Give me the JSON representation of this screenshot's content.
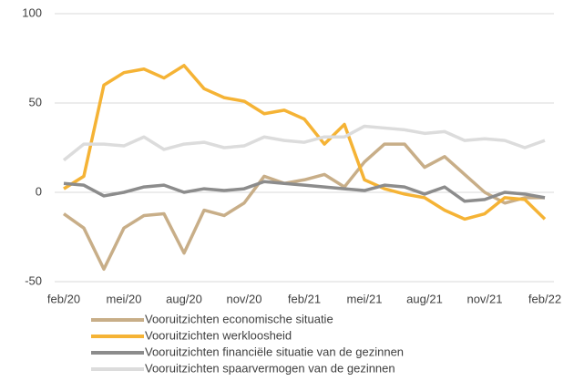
{
  "chart_data": {
    "type": "line",
    "categories": [
      "feb/20",
      null,
      null,
      "mei/20",
      null,
      null,
      "aug/20",
      null,
      null,
      "nov/20",
      null,
      null,
      "feb/21",
      null,
      null,
      "mei/21",
      null,
      null,
      "aug/21",
      null,
      null,
      "nov/21",
      null,
      null,
      "feb/22"
    ],
    "series": [
      {
        "name": "Vooruitzichten economische situatie",
        "color": "#c8ae88",
        "values": [
          -12,
          -20,
          -43,
          -20,
          -13,
          -12,
          -34,
          -10,
          -13,
          -6,
          9,
          5,
          7,
          10,
          3,
          17,
          27,
          27,
          14,
          20,
          10,
          0,
          -6,
          -3,
          -3
        ]
      },
      {
        "name": "Vooruitzichten werkloosheid",
        "color": "#f5b335",
        "values": [
          2,
          9,
          60,
          67,
          69,
          64,
          71,
          58,
          53,
          51,
          44,
          46,
          41,
          27,
          38,
          7,
          2,
          -1,
          -3,
          -10,
          -15,
          -12,
          -3,
          -4,
          -15
        ]
      },
      {
        "name": "Vooruitzichten financiële situatie van de gezinnen",
        "color": "#8c8c8c",
        "values": [
          5,
          4,
          -2,
          0,
          3,
          4,
          0,
          2,
          1,
          2,
          6,
          5,
          4,
          3,
          2,
          1,
          4,
          3,
          -1,
          3,
          -5,
          -4,
          0,
          -1,
          -3
        ]
      },
      {
        "name": "Vooruitzichten spaarvermogen van de gezinnen",
        "color": "#dcdcdc",
        "values": [
          18,
          27,
          27,
          26,
          31,
          24,
          27,
          28,
          25,
          26,
          31,
          29,
          28,
          31,
          31,
          37,
          36,
          35,
          33,
          34,
          29,
          30,
          29,
          25,
          29
        ]
      }
    ],
    "ylim": [
      -50,
      100
    ],
    "yticks": [
      100,
      50,
      0,
      -50
    ],
    "grid": true
  }
}
